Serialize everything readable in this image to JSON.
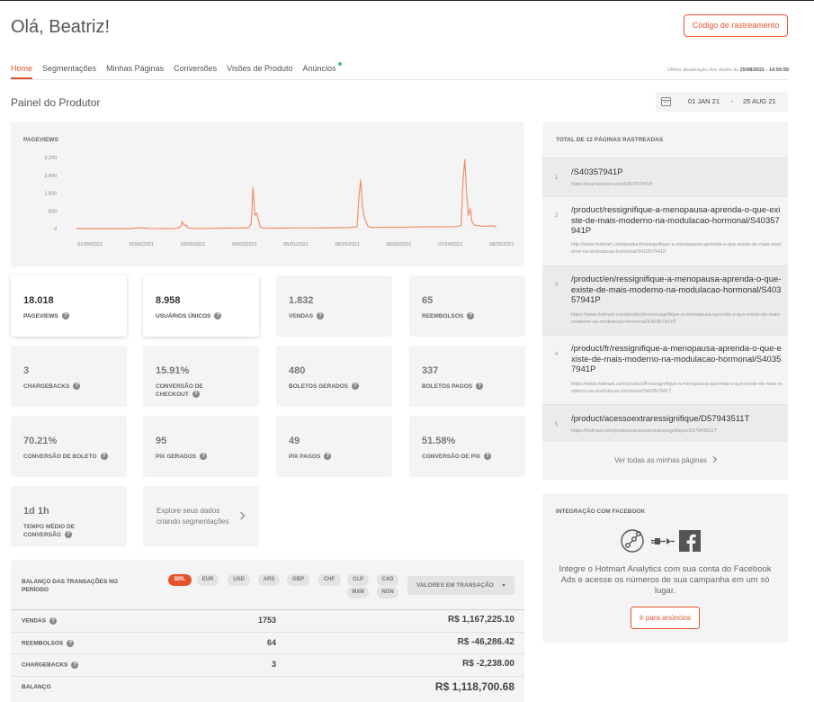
{
  "header": {
    "greeting": "Olá, Beatriz!",
    "tracking_button": "Código de rastreamento"
  },
  "tabs": [
    {
      "label": "Home",
      "active": true
    },
    {
      "label": "Segmentações"
    },
    {
      "label": "Minhas Páginas"
    },
    {
      "label": "Conversões"
    },
    {
      "label": "Visões de Produto"
    },
    {
      "label": "Anúncios",
      "badge_color": "#3fc46b"
    }
  ],
  "last_update": {
    "label": "Última atualização dos dados às",
    "value": "25/08/2021 - 14:59:59"
  },
  "panel_title": "Painel do Produtor",
  "date_range": {
    "start": "01 JAN 21",
    "separator": "-",
    "end": "25 AUG 21"
  },
  "accent_color": "#e5532d",
  "chart_data": {
    "type": "line",
    "title": "PAGEVIEWS",
    "series_color": "#f0906b",
    "yticks": [
      "3,200",
      "2,400",
      "1,600",
      "800",
      "0"
    ],
    "ylim": [
      0,
      3200
    ],
    "xticks": [
      "01/09/2021",
      "02/06/2021",
      "03/06/2021",
      "04/03/2021",
      "05/01/2021",
      "05/29/2021",
      "06/26/2021",
      "07/24/2021",
      "08/25/2021"
    ],
    "grid": false,
    "points": [
      [
        0,
        0
      ],
      [
        20,
        0
      ],
      [
        40,
        0
      ],
      [
        60,
        0
      ],
      [
        70,
        40
      ],
      [
        80,
        10
      ],
      [
        100,
        0
      ],
      [
        110,
        10
      ],
      [
        115,
        80
      ],
      [
        117,
        320
      ],
      [
        119,
        120
      ],
      [
        121,
        160
      ],
      [
        123,
        40
      ],
      [
        126,
        10
      ],
      [
        140,
        10
      ],
      [
        160,
        20
      ],
      [
        180,
        30
      ],
      [
        190,
        40
      ],
      [
        193,
        200
      ],
      [
        195,
        1850
      ],
      [
        197,
        600
      ],
      [
        199,
        700
      ],
      [
        201,
        400
      ],
      [
        203,
        80
      ],
      [
        206,
        30
      ],
      [
        220,
        20
      ],
      [
        240,
        30
      ],
      [
        260,
        30
      ],
      [
        280,
        40
      ],
      [
        300,
        50
      ],
      [
        310,
        80
      ],
      [
        312,
        1400
      ],
      [
        314,
        2200
      ],
      [
        316,
        1000
      ],
      [
        318,
        500
      ],
      [
        320,
        300
      ],
      [
        322,
        100
      ],
      [
        326,
        50
      ],
      [
        340,
        60
      ],
      [
        360,
        60
      ],
      [
        380,
        80
      ],
      [
        400,
        80
      ],
      [
        420,
        90
      ],
      [
        425,
        150
      ],
      [
        427,
        2200
      ],
      [
        429,
        3100
      ],
      [
        431,
        1600
      ],
      [
        433,
        600
      ],
      [
        435,
        900
      ],
      [
        437,
        300
      ],
      [
        440,
        150
      ],
      [
        450,
        100
      ],
      [
        460,
        120
      ],
      [
        464,
        80
      ]
    ]
  },
  "metrics": [
    {
      "value": "18.018",
      "label": "PAGEVIEWS",
      "highlight": true
    },
    {
      "value": "8.958",
      "label": "USUÁRIOS ÚNICOS",
      "highlight": true
    },
    {
      "value": "1.832",
      "label": "VENDAS"
    },
    {
      "value": "65",
      "label": "REEMBOLSOS"
    },
    {
      "value": "3",
      "label": "CHARGEBACKS"
    },
    {
      "value": "15.91%",
      "label": "CONVERSÃO DE CHECKOUT"
    },
    {
      "value": "480",
      "label": "BOLETOS GERADOS"
    },
    {
      "value": "337",
      "label": "BOLETOS PAGOS"
    },
    {
      "value": "70.21%",
      "label": "CONVERSÃO DE BOLETO"
    },
    {
      "value": "95",
      "label": "PIX GERADOS"
    },
    {
      "value": "49",
      "label": "PIX PAGOS"
    },
    {
      "value": "51.58%",
      "label": "CONVERSÃO DE PIX"
    },
    {
      "value": "1d 1h",
      "label": "TEMPO MÉDIO DE CONVERSÃO"
    }
  ],
  "explore": {
    "text": "Explore seus dados criando segmentações"
  },
  "balance": {
    "title": "BALANÇO DAS TRANSAÇÕES NO PERÍODO",
    "currencies": [
      "BRL",
      "EUR",
      "USD",
      "ARS",
      "GBP",
      "CHF",
      "CLP",
      "CAD",
      "MXN",
      "NGN"
    ],
    "active_currency": "BRL",
    "dropdown": "VALORES EM TRANSAÇÃO",
    "rows": [
      {
        "label": "VENDAS",
        "count": "1753",
        "value": "R$ 1,167,225.10"
      },
      {
        "label": "REEMBOLSOS",
        "count": "64",
        "value": "R$ -46,286.42"
      },
      {
        "label": "CHARGEBACKS",
        "count": "3",
        "value": "R$ -2,238.00"
      },
      {
        "label": "BALANÇO",
        "count": "",
        "value": "R$ 1,118,700.68"
      }
    ]
  },
  "tracked_pages": {
    "title": "TOTAL DE 12 PÁGINAS RASTREADAS",
    "items": [
      {
        "num": "1",
        "path": "/S40357941P",
        "url": "https://pay.hotmart.com/S40357941P"
      },
      {
        "num": "2",
        "path": "/product/ressignifique-a-menopausa-aprenda-o-que-existe-de-mais-moderno-na-modulacao-hormonal/S40357941P",
        "url": "http://www.hotmart.com/product/ressignifique-a-menopausa-aprenda-o-que-existe-de-mais-moderno-na-modulacao-hormonal/S40357941P"
      },
      {
        "num": "3",
        "path": "/product/en/ressignifique-a-menopausa-aprenda-o-que-existe-de-mais-moderno-na-modulacao-hormonal/S40357941P",
        "url": "https://www.hotmart.com/product/en/ressignifique-a-menopausa-aprenda-o-que-existe-de-mais-moderno-na-modulacao-hormonal/S40357941P"
      },
      {
        "num": "4",
        "path": "/product/fr/ressignifique-a-menopausa-aprenda-o-que-existe-de-mais-moderno-na-modulacao-hormonal/S40357941P",
        "url": "https://www.hotmart.com/product/fr/ressignifique-a-menopausa-aprenda-o-que-existe-de-mais-moderno-na-modulacao-hormonal/S40357941T"
      },
      {
        "num": "5",
        "path": "/product/acessoextraressignifique/D57943511T",
        "url": "https://hotmart.com/product/acessoextraressignifique/D57943511T"
      }
    ],
    "see_all": "Ver todas as minhas páginas"
  },
  "facebook": {
    "title": "INTEGRAÇÃO COM FACEBOOK",
    "text": "Integre o Hotmart Analytics com sua conta do Facebook Ads e acesse os números de sua campanha em um só lugar.",
    "button": "Ir para anúncios",
    "icons": [
      "analytics-icon",
      "plug-icon",
      "facebook-icon"
    ]
  }
}
